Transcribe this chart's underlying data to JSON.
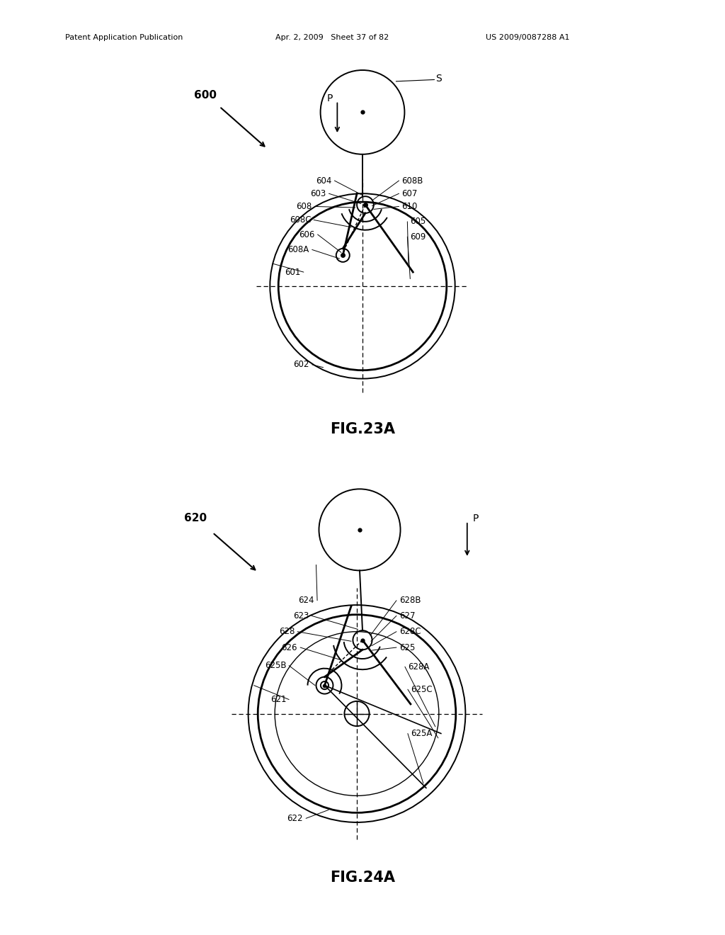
{
  "bg_color": "#ffffff",
  "header_text": "Patent Application Publication    Apr. 2, 2009   Sheet 37 of 82    US 2009/0087288 A1",
  "fig23a_label": "FIG.23A",
  "fig24a_label": "FIG.24A",
  "fig23a": {
    "labels_left": [
      "604",
      "603",
      "608",
      "608C",
      "606",
      "608A",
      "601"
    ],
    "labels_right": [
      "608B",
      "607",
      "610",
      "605",
      "609"
    ],
    "label_600": "600",
    "label_P": "P",
    "label_S": "S",
    "label_602": "602"
  },
  "fig24a": {
    "labels_left": [
      "624",
      "623",
      "628",
      "626",
      "625B",
      "621"
    ],
    "labels_right": [
      "628B",
      "627",
      "628C",
      "625",
      "628A",
      "625C"
    ],
    "label_620": "620",
    "label_P": "P",
    "label_622": "622",
    "label_625A": "625A"
  }
}
